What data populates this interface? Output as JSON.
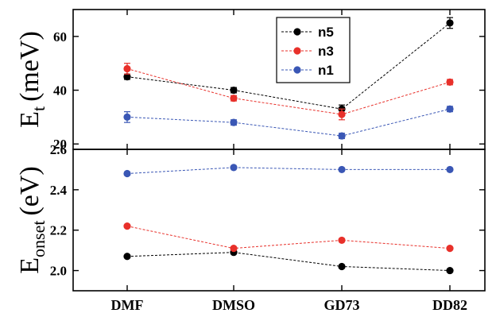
{
  "chart_data": [
    {
      "type": "line",
      "title": "",
      "ylabel_main": "E",
      "ylabel_sub": "t",
      "ylabel_unit": "(meV)",
      "xlabel": "",
      "categories": [
        "DMF",
        "DMSO",
        "GD73",
        "DD82"
      ],
      "ylim": [
        18,
        70
      ],
      "yticks": [
        20,
        40,
        60
      ],
      "ytick_labels": [
        "20",
        "40",
        "60"
      ],
      "legend": {
        "position": "top-right",
        "entries": [
          "n5",
          "n3",
          "n1"
        ]
      },
      "series": [
        {
          "name": "n5",
          "color": "#000000",
          "values": [
            45,
            40,
            33,
            65
          ],
          "errors": [
            1,
            1,
            1.5,
            2
          ]
        },
        {
          "name": "n3",
          "color": "#e8302a",
          "values": [
            48,
            37,
            31,
            43
          ],
          "errors": [
            2,
            1,
            2,
            1
          ]
        },
        {
          "name": "n1",
          "color": "#3a57b5",
          "values": [
            30,
            28,
            23,
            33
          ],
          "errors": [
            2,
            1,
            1,
            1
          ]
        }
      ]
    },
    {
      "type": "line",
      "title": "",
      "ylabel_main": "E",
      "ylabel_sub": "onset",
      "ylabel_unit": "(eV)",
      "xlabel": "",
      "categories": [
        "DMF",
        "DMSO",
        "GD73",
        "DD82"
      ],
      "ylim": [
        1.9,
        2.6
      ],
      "yticks": [
        2.0,
        2.2,
        2.4,
        2.6
      ],
      "ytick_labels": [
        "2.0",
        "2.2",
        "2.4",
        "2.6"
      ],
      "series": [
        {
          "name": "n5",
          "color": "#000000",
          "values": [
            2.07,
            2.09,
            2.02,
            2.0
          ]
        },
        {
          "name": "n3",
          "color": "#e8302a",
          "values": [
            2.22,
            2.11,
            2.15,
            2.11
          ]
        },
        {
          "name": "n1",
          "color": "#3a57b5",
          "values": [
            2.48,
            2.51,
            2.5,
            2.5
          ]
        }
      ]
    }
  ]
}
